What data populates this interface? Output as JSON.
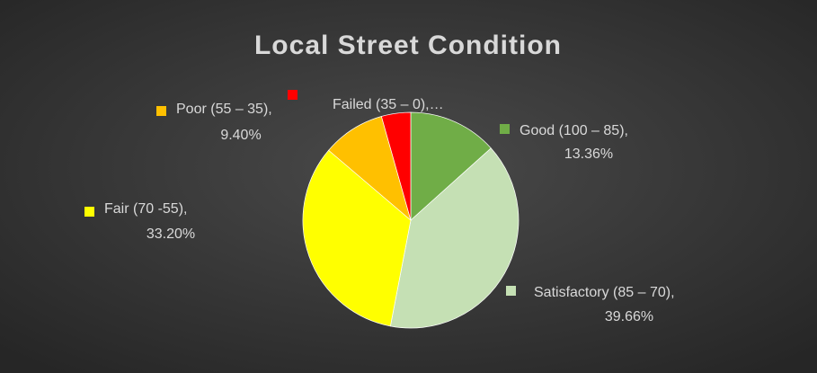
{
  "chart_data": {
    "type": "pie",
    "title": "Local Street Condition",
    "categories": [
      "Good (100 – 85),",
      "Satisfactory (85 – 70),",
      "Fair (70 -55),",
      "Poor (55 – 35),",
      "Failed (35 – 0),…"
    ],
    "values": [
      13.36,
      39.66,
      33.2,
      9.4,
      4.38
    ],
    "value_labels": [
      "13.36%",
      "39.66%",
      "33.20%",
      "9.40%",
      null
    ],
    "colors": [
      "#70ad47",
      "#c5e0b4",
      "#ffff00",
      "#ffc000",
      "#ff0000"
    ]
  }
}
